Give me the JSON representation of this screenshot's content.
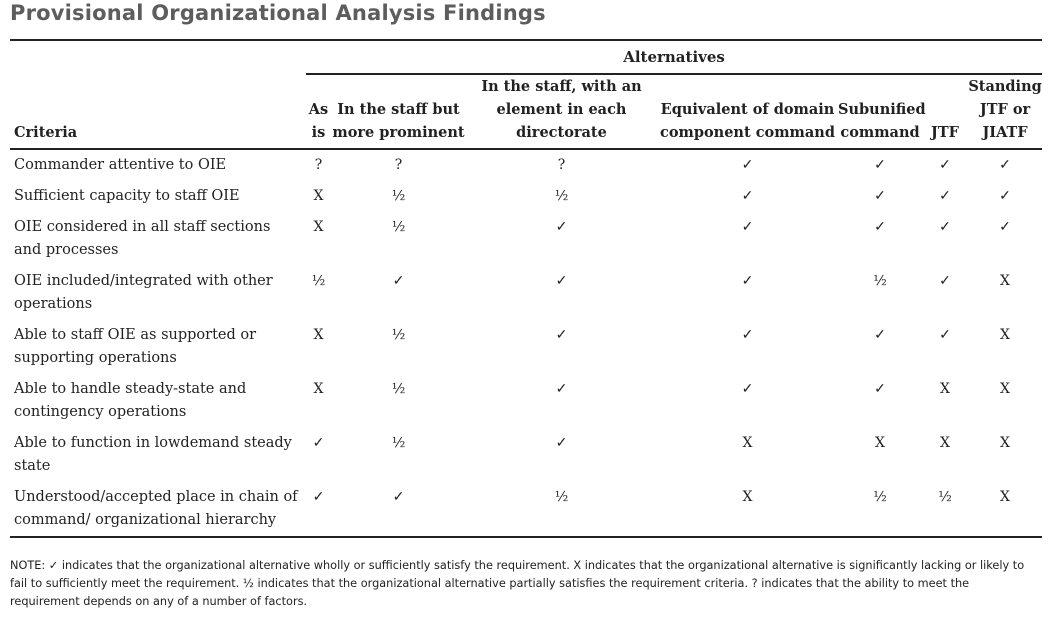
{
  "title": "Provisional Organizational Analysis Findings",
  "alternatives_label": "Alternatives",
  "criteria_label": "Criteria",
  "columns": [
    "As is",
    "In the staff but more prominent",
    "In the staff, with an element in each directorate",
    "Equivalent of domain component command",
    "Subunified command",
    "JTF",
    "Standing JTF or JIATF"
  ],
  "rows": [
    {
      "criterion": "Commander attentive to OIE",
      "values": [
        "?",
        "?",
        "?",
        "✓",
        "✓",
        "✓",
        "✓"
      ]
    },
    {
      "criterion": "Sufficient capacity to staff OIE",
      "values": [
        "X",
        "½",
        "½",
        "✓",
        "✓",
        "✓",
        "✓"
      ]
    },
    {
      "criterion": "OIE considered in all staff sections and processes",
      "values": [
        "X",
        "½",
        "✓",
        "✓",
        "✓",
        "✓",
        "✓"
      ]
    },
    {
      "criterion": "OIE included/integrated with other operations",
      "values": [
        "½",
        "✓",
        "✓",
        "✓",
        "½",
        "✓",
        "X"
      ]
    },
    {
      "criterion": "Able to staff OIE as supported or supporting operations",
      "values": [
        "X",
        "½",
        "✓",
        "✓",
        "✓",
        "✓",
        "X"
      ]
    },
    {
      "criterion": "Able to handle steady-state and contingency operations",
      "values": [
        "X",
        "½",
        "✓",
        "✓",
        "✓",
        "X",
        "X"
      ]
    },
    {
      "criterion": "Able to function in lowdemand steady state",
      "values": [
        "✓",
        "½",
        "✓",
        "X",
        "X",
        "X",
        "X"
      ]
    },
    {
      "criterion": "Understood/accepted place in chain of command/ organizational hierarchy",
      "values": [
        "✓",
        "✓",
        "½",
        "X",
        "½",
        "½",
        "X"
      ]
    }
  ],
  "note": "NOTE: ✓ indicates that the organizational alternative wholly or sufficiently satisfy the requirement. X indicates that the organizational alternative is significantly lacking or likely to fail to sufficiently meet the requirement. ½ indicates that the organizational alternative partially satisfies the requirement criteria. ? indicates that the ability to meet the requirement depends on any of a number of factors."
}
